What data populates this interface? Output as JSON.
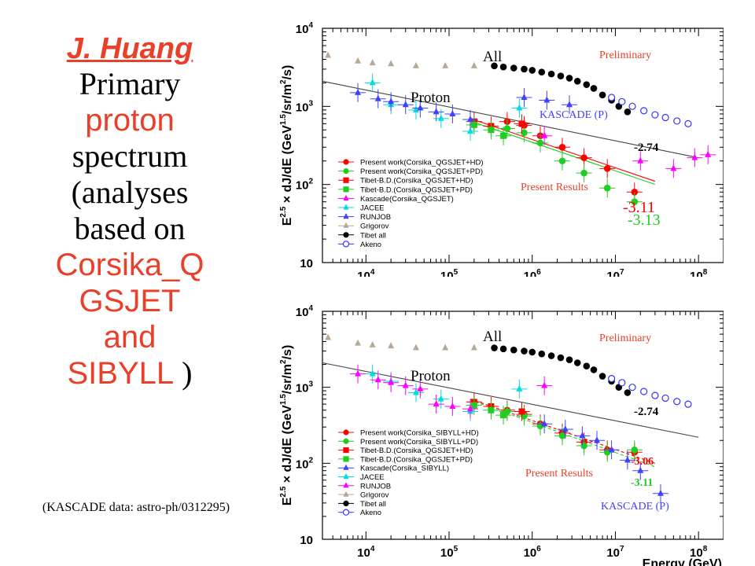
{
  "left_panel": {
    "author": "J. Huang",
    "lines": [
      {
        "text": "Primary",
        "color": "black"
      },
      {
        "text": "proton",
        "color": "red"
      },
      {
        "text": "spectrum",
        "color": "black"
      },
      {
        "text": "(analyses",
        "color": "black"
      },
      {
        "text": "based on",
        "color": "black"
      },
      {
        "text": "Corsika_Q",
        "color": "red"
      },
      {
        "text": "GSJET",
        "color": "red"
      },
      {
        "text": "and",
        "color": "red"
      },
      {
        "text": "SIBYLL )",
        "color": "mixed"
      }
    ],
    "reference": "(KASCADE data:  astro-ph/0312295)"
  },
  "colors": {
    "accent_red": "#e8402a",
    "present_hd": "#ff0000",
    "present_pd": "#22cc22",
    "kascade": "#ff00ff",
    "jacee": "#00dddd",
    "runjob": "#4040ff",
    "grigorov": "#b8a898",
    "tibet_all": "#000000",
    "akeno": "#3333ff"
  },
  "chart_data": [
    {
      "type": "scatter",
      "xscale": "log",
      "yscale": "log",
      "xlim": [
        3000,
        200000000
      ],
      "ylim": [
        10,
        10000
      ],
      "x_ticks": [
        {
          "v": 10000,
          "label": "10",
          "exp": "4"
        },
        {
          "v": 100000,
          "label": "10",
          "exp": "5"
        },
        {
          "v": 1000000,
          "label": "10",
          "exp": "6"
        },
        {
          "v": 10000000,
          "label": "10",
          "exp": "7"
        },
        {
          "v": 100000000,
          "label": "10",
          "exp": "8"
        }
      ],
      "y_ticks": [
        {
          "v": 10,
          "label": "10",
          "exp": ""
        },
        {
          "v": 100,
          "label": "10",
          "exp": "2"
        },
        {
          "v": 1000,
          "label": "10",
          "exp": "3"
        },
        {
          "v": 10000,
          "label": "10",
          "exp": "4"
        }
      ],
      "ylabel": "E2.5 × dJ/dE (GeV1.5/sr/m2/s)",
      "ylabel_parts": {
        "e": "E",
        "e_exp": "2.5",
        "mid": " × dJ/dE (GeV",
        "gev_exp": "1.5",
        "end": "/sr/m",
        "m_exp": "2",
        "tail": "/s)"
      },
      "xlabel": "",
      "legend": [
        "Present work(Corsika_QGSJET+HD)",
        "Present work(Corsika_QGSJET+PD)",
        "Tibet-B.D.(Corsika_QGSJET+HD)",
        "Tibet-B.D.(Corsika_QGSJET+PD)",
        "Kascade(Corsika_QGSJET)",
        "JACEE",
        "RUNJOB",
        "Grigorov",
        "Tibet all",
        "Akeno"
      ],
      "annotations": {
        "all": "All",
        "proton": "Proton",
        "preliminary": "Preliminary",
        "kascade_p": "KASCADE (P)",
        "present_results": "Present Results",
        "slope_all": "-2.74",
        "slope_hd": "-3.11",
        "slope_pd": "-3.13"
      },
      "series": [
        {
          "name": "Present work(Corsika_QGSJET+HD)",
          "marker": "circle",
          "color": "#ff0000",
          "x": [
            500000,
            800000,
            1250000,
            2300000,
            4200000,
            8000000,
            17000000
          ],
          "y": [
            640,
            570,
            420,
            300,
            220,
            160,
            80
          ]
        },
        {
          "name": "Present work(Corsika_QGSJET+PD)",
          "marker": "circle",
          "color": "#22cc22",
          "x": [
            500000,
            800000,
            1250000,
            2300000,
            4200000,
            8000000,
            17000000
          ],
          "y": [
            520,
            460,
            340,
            200,
            140,
            90,
            60
          ]
        },
        {
          "name": "Tibet-B.D.(Corsika_QGSJET+HD)",
          "marker": "square",
          "color": "#ff0000",
          "x": [
            200000,
            320000,
            750000
          ],
          "y": [
            640,
            560,
            600
          ]
        },
        {
          "name": "Tibet-B.D.(Corsika_QGSJET+PD)",
          "marker": "square",
          "color": "#22cc22",
          "x": [
            200000,
            320000,
            450000
          ],
          "y": [
            580,
            500,
            420
          ]
        },
        {
          "name": "Kascade(Corsika_QGSJET)",
          "marker": "triangle",
          "color": "#ff00ff",
          "x": [
            1400000,
            20000000,
            50000000,
            90000000,
            130000000
          ],
          "y": [
            420,
            200,
            160,
            220,
            240
          ]
        },
        {
          "name": "JACEE",
          "marker": "triangle",
          "color": "#00dddd",
          "x": [
            12000,
            20000,
            40000,
            80000,
            180000,
            700000
          ],
          "y": [
            2000,
            1050,
            900,
            700,
            480,
            950
          ]
        },
        {
          "name": "RUNJOB",
          "marker": "triangle",
          "color": "#4040ff",
          "x": [
            8000,
            14000,
            20000,
            30000,
            45000,
            70000,
            110000,
            180000
          ],
          "y": [
            1500,
            1250,
            1150,
            1050,
            950,
            850,
            800,
            680
          ]
        },
        {
          "name": "Grigorov",
          "marker": "triangle",
          "color": "#b8a898",
          "x": [
            3500,
            8000,
            12000,
            20000,
            40000,
            90000,
            200000
          ],
          "y": [
            4500,
            3800,
            3600,
            3500,
            3300,
            3300,
            3300
          ]
        },
        {
          "name": "Tibet all",
          "marker": "circle",
          "color": "#000000",
          "x": [
            350000,
            450000,
            600000,
            800000,
            1000000,
            1300000,
            1700000,
            2200000,
            2800000,
            3500000,
            4500000,
            5500000,
            7000000,
            9000000,
            11000000,
            14000000
          ],
          "y": [
            3300,
            3200,
            3100,
            3000,
            2900,
            2750,
            2600,
            2450,
            2300,
            2100,
            1900,
            1700,
            1400,
            1200,
            1000,
            850
          ]
        },
        {
          "name": "Akeno",
          "marker": "open-circle",
          "color": "#3333ff",
          "x": [
            9000000,
            12000000,
            16000000,
            22000000,
            30000000,
            40000000,
            55000000,
            75000000
          ],
          "y": [
            1300,
            1150,
            1000,
            880,
            780,
            720,
            650,
            600
          ]
        },
        {
          "name": "KASCADE (P)",
          "marker": "triangle",
          "color": "#4040ff",
          "x": [
            800000,
            1500000,
            2800000
          ],
          "y": [
            1300,
            1200,
            1050
          ]
        }
      ],
      "fit_lines": [
        {
          "label": "-2.74",
          "color": "#000000",
          "x": [
            3000,
            100000000
          ],
          "y": [
            2100,
            220
          ]
        },
        {
          "label": "-3.11",
          "color": "#ff0000",
          "x": [
            180000,
            30000000
          ],
          "y": [
            700,
            110
          ]
        },
        {
          "label": "-3.13",
          "color": "#22cc22",
          "x": [
            180000,
            30000000
          ],
          "y": [
            650,
            100
          ]
        }
      ]
    },
    {
      "type": "scatter",
      "xscale": "log",
      "yscale": "log",
      "xlim": [
        3000,
        200000000
      ],
      "ylim": [
        10,
        10000
      ],
      "x_ticks": [
        {
          "v": 10000,
          "label": "10",
          "exp": "4"
        },
        {
          "v": 100000,
          "label": "10",
          "exp": "5"
        },
        {
          "v": 1000000,
          "label": "10",
          "exp": "6"
        },
        {
          "v": 10000000,
          "label": "10",
          "exp": "7"
        },
        {
          "v": 100000000,
          "label": "10",
          "exp": "8"
        }
      ],
      "y_ticks": [
        {
          "v": 10,
          "label": "10",
          "exp": ""
        },
        {
          "v": 100,
          "label": "10",
          "exp": "2"
        },
        {
          "v": 1000,
          "label": "10",
          "exp": "3"
        },
        {
          "v": 10000,
          "label": "10",
          "exp": "4"
        }
      ],
      "ylabel": "E2.5 × dJ/dE (GeV1.5/sr/m2/s)",
      "ylabel_parts": {
        "e": "E",
        "e_exp": "2.5",
        "mid": " × dJ/dE (GeV",
        "gev_exp": "1.5",
        "end": "/sr/m",
        "m_exp": "2",
        "tail": "/s)"
      },
      "xlabel": "Energy (GeV)",
      "legend": [
        "Present work(Corsika_SIBYLL+HD)",
        "Present work(Corsika_SIBYLL+PD)",
        "Tibet-B.D.(Corsika_QGSJET+HD)",
        "Tibet-B.D.(Corsika_QGSJET+PD)",
        "Kascade(Corsika_SIBYLL)",
        "JACEE",
        "RUNJOB",
        "Grigorov",
        "Tibet all",
        "Akeno"
      ],
      "annotations": {
        "all": "All",
        "proton": "Proton",
        "preliminary": "Preliminary",
        "kascade_p": "KASCADE (P)",
        "present_results": "Present Results",
        "slope_all": "-2.74",
        "slope_hd": "-3.06",
        "slope_pd": "-3.11"
      },
      "series": [
        {
          "name": "Present work(Corsika_SIBYLL+HD)",
          "marker": "circle",
          "color": "#ff0000",
          "x": [
            500000,
            800000,
            1250000,
            2300000,
            4200000,
            8000000,
            17000000
          ],
          "y": [
            500,
            440,
            330,
            250,
            190,
            150,
            140
          ]
        },
        {
          "name": "Present work(Corsika_SIBYLL+PD)",
          "marker": "circle",
          "color": "#22cc22",
          "x": [
            500000,
            800000,
            1250000,
            2300000,
            4200000,
            8000000,
            17000000
          ],
          "y": [
            480,
            420,
            310,
            230,
            170,
            140,
            150
          ]
        },
        {
          "name": "Tibet-B.D.(Corsika_QGSJET+HD)",
          "marker": "square",
          "color": "#ff0000",
          "x": [
            200000,
            320000,
            750000
          ],
          "y": [
            640,
            560,
            480
          ]
        },
        {
          "name": "Tibet-B.D.(Corsika_QGSJET+PD)",
          "marker": "square",
          "color": "#22cc22",
          "x": [
            200000,
            320000,
            450000
          ],
          "y": [
            580,
            500,
            430
          ]
        },
        {
          "name": "Kascade(Corsika_SIBYLL)",
          "marker": "triangle",
          "color": "#4040ff",
          "x": [
            1400000,
            2500000,
            4000000,
            6000000,
            9000000,
            14000000,
            20000000,
            35000000
          ],
          "y": [
            330,
            280,
            230,
            200,
            150,
            110,
            80,
            40
          ]
        },
        {
          "name": "JACEE",
          "marker": "triangle",
          "color": "#00dddd",
          "x": [
            12000,
            20000,
            40000,
            80000,
            180000,
            700000
          ],
          "y": [
            1500,
            1200,
            850,
            700,
            480,
            950
          ]
        },
        {
          "name": "RUNJOB",
          "marker": "triangle",
          "color": "#ff00ff",
          "x": [
            8000,
            14000,
            20000,
            30000,
            45000,
            70000,
            110000,
            180000,
            1400000
          ],
          "y": [
            1500,
            1250,
            1150,
            1050,
            950,
            600,
            560,
            520,
            1050
          ]
        },
        {
          "name": "Grigorov",
          "marker": "triangle",
          "color": "#b8a898",
          "x": [
            3500,
            8000,
            12000,
            20000,
            40000,
            90000,
            200000
          ],
          "y": [
            4500,
            3800,
            3600,
            3500,
            3300,
            3300,
            3300
          ]
        },
        {
          "name": "Tibet all",
          "marker": "circle",
          "color": "#000000",
          "x": [
            350000,
            450000,
            600000,
            800000,
            1000000,
            1300000,
            1700000,
            2200000,
            2800000,
            3500000,
            4500000,
            5500000,
            7000000,
            9000000,
            11000000,
            14000000
          ],
          "y": [
            3300,
            3200,
            3100,
            3000,
            2900,
            2750,
            2600,
            2450,
            2300,
            2100,
            1900,
            1700,
            1400,
            1200,
            1000,
            850
          ]
        },
        {
          "name": "Akeno",
          "marker": "open-circle",
          "color": "#3333ff",
          "x": [
            9000000,
            12000000,
            16000000,
            22000000,
            30000000,
            40000000,
            55000000,
            75000000
          ],
          "y": [
            1300,
            1150,
            1000,
            880,
            780,
            720,
            650,
            600
          ]
        }
      ],
      "fit_lines": [
        {
          "label": "-2.74",
          "color": "#000000",
          "x": [
            3000,
            100000000
          ],
          "y": [
            2100,
            220
          ]
        },
        {
          "label": "-3.06",
          "color": "#ff0000",
          "x": [
            180000,
            30000000
          ],
          "y": [
            700,
            100
          ]
        },
        {
          "label": "-3.11",
          "color": "#22cc22",
          "x": [
            180000,
            30000000
          ],
          "y": [
            680,
            90
          ]
        }
      ]
    }
  ]
}
